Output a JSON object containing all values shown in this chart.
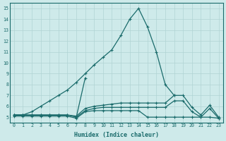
{
  "xlabel": "Humidex (Indice chaleur)",
  "ylabel": "",
  "bg_color": "#ceeaea",
  "line_color": "#1a6b6b",
  "grid_color": "#b0d4d4",
  "xlim": [
    -0.5,
    23.5
  ],
  "ylim": [
    4.5,
    15.5
  ],
  "xticks": [
    0,
    1,
    2,
    3,
    4,
    5,
    6,
    7,
    8,
    9,
    10,
    11,
    12,
    13,
    14,
    15,
    16,
    17,
    18,
    19,
    20,
    21,
    22,
    23
  ],
  "yticks": [
    5,
    6,
    7,
    8,
    9,
    10,
    11,
    12,
    13,
    14,
    15
  ],
  "lines": [
    {
      "x": [
        0,
        1,
        2,
        3,
        4,
        5,
        6,
        7,
        8,
        9,
        10,
        11,
        12,
        13,
        14,
        15,
        16,
        17,
        18
      ],
      "y": [
        5.2,
        5.2,
        5.5,
        6.0,
        6.5,
        7.0,
        7.5,
        8.2,
        9.0,
        9.8,
        10.5,
        11.2,
        12.5,
        14.0,
        15.0,
        13.3,
        11.0,
        8.0,
        7.0
      ]
    },
    {
      "x": [
        7,
        8
      ],
      "y": [
        5.0,
        8.6
      ]
    },
    {
      "x": [
        0,
        1,
        2,
        3,
        4,
        5,
        6,
        7,
        8,
        9,
        10,
        11,
        12,
        13,
        14,
        15,
        16,
        17,
        18,
        19,
        20,
        21,
        22,
        23
      ],
      "y": [
        5.2,
        5.2,
        5.2,
        5.2,
        5.2,
        5.2,
        5.2,
        5.1,
        5.8,
        6.0,
        6.1,
        6.2,
        6.3,
        6.3,
        6.3,
        6.3,
        6.3,
        6.3,
        7.0,
        7.0,
        5.9,
        5.2,
        6.1,
        5.0
      ]
    },
    {
      "x": [
        0,
        1,
        2,
        3,
        4,
        5,
        6,
        7,
        8,
        9,
        10,
        11,
        12,
        13,
        14,
        15,
        16,
        17,
        18,
        19,
        20,
        21,
        22,
        23
      ],
      "y": [
        5.2,
        5.2,
        5.2,
        5.2,
        5.2,
        5.2,
        5.2,
        5.0,
        5.6,
        5.8,
        5.9,
        5.9,
        5.9,
        5.9,
        5.9,
        5.9,
        5.9,
        5.9,
        6.5,
        6.5,
        5.5,
        5.0,
        5.8,
        4.9
      ]
    },
    {
      "x": [
        0,
        1,
        2,
        3,
        4,
        5,
        6,
        7,
        8,
        9,
        10,
        11,
        12,
        13,
        14,
        15,
        16,
        17,
        18,
        19,
        20,
        21,
        22,
        23
      ],
      "y": [
        5.1,
        5.1,
        5.1,
        5.1,
        5.1,
        5.1,
        5.1,
        4.9,
        5.5,
        5.6,
        5.6,
        5.6,
        5.6,
        5.6,
        5.6,
        5.0,
        5.0,
        5.0,
        5.0,
        5.0,
        5.0,
        5.0,
        5.0,
        4.9
      ]
    }
  ]
}
